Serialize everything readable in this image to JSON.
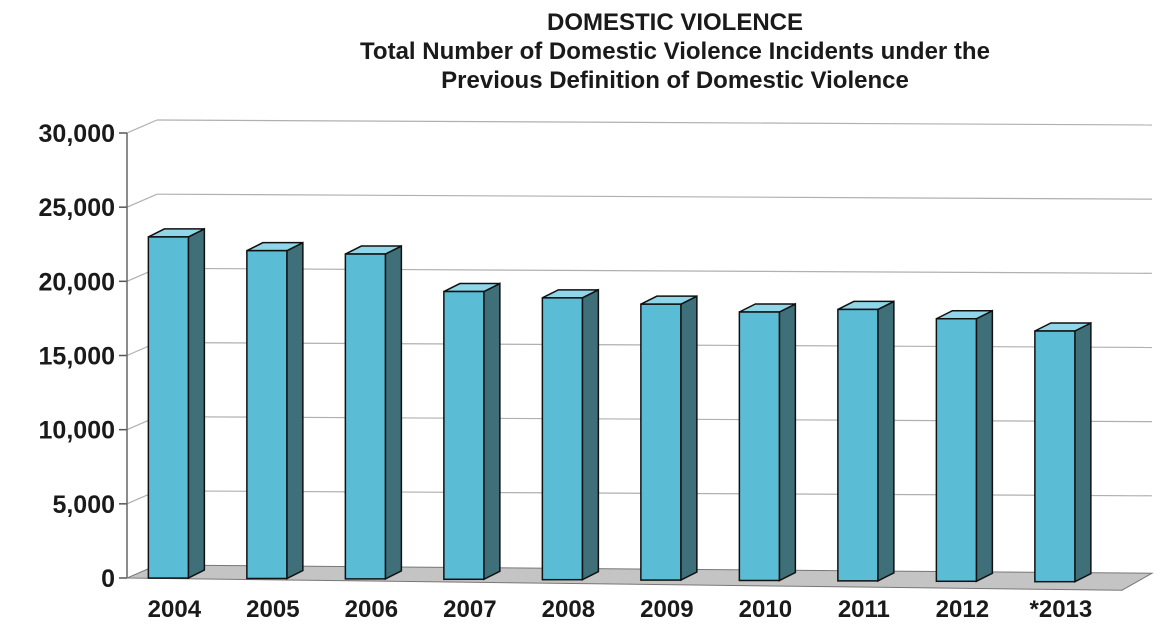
{
  "chart_data": {
    "type": "bar",
    "title": "DOMESTIC VIOLENCE",
    "subtitle": "Total Number of Domestic Violence Incidents under the Previous Definition of Domestic Violence",
    "subtitle_lines": [
      "Total Number of Domestic Violence Incidents under the",
      "Previous Definition of Domestic Violence"
    ],
    "categories": [
      "2004",
      "2005",
      "2006",
      "2007",
      "2008",
      "2009",
      "2010",
      "2011",
      "2012",
      "*2013"
    ],
    "values": [
      23000,
      22100,
      21900,
      19400,
      19000,
      18600,
      18100,
      18300,
      17700,
      16900
    ],
    "xlabel": "",
    "ylabel": "",
    "ylim": [
      0,
      30000
    ],
    "yticks": [
      0,
      5000,
      10000,
      15000,
      20000,
      25000,
      30000
    ],
    "ytick_labels": [
      "0",
      "5,000",
      "10,000",
      "15,000",
      "20,000",
      "25,000",
      "30,000"
    ],
    "grid": true,
    "legend": "none",
    "style": "3d-columns",
    "colors": {
      "bar_front": "#5bbcd6",
      "bar_top": "#8fd6e8",
      "bar_side": "#3f6f78",
      "floor": "#c4c4c4",
      "grid": "#b0b0b0"
    }
  }
}
